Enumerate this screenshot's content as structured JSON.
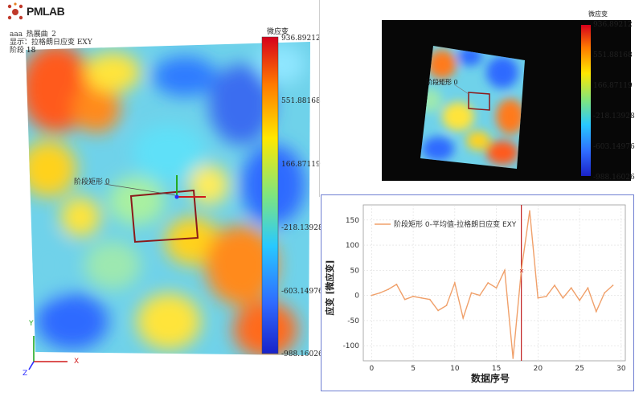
{
  "app": {
    "logo": "PMLAB",
    "view_name": "aaa_热展曲_2",
    "display_label": "显示：拉格朗日应变 EXY",
    "stage_label": "阶段",
    "stage_value": "18"
  },
  "left_view": {
    "rect_label": "阶段矩形 0",
    "colorbar": {
      "title": "微应变",
      "ticks": [
        "936.89212",
        "551.88168",
        "166.87119",
        "-218.13928",
        "-603.14976",
        "-988.16026"
      ]
    },
    "axes": {
      "x": "X",
      "y": "Y",
      "z": "Z"
    }
  },
  "right_view": {
    "rect_label": "阶段矩形 0",
    "colorbar": {
      "title": "微应变",
      "ticks": [
        "936.89212",
        "551.88168",
        "166.87119",
        "-218.13928",
        "-603.14976",
        "-988.16026"
      ]
    }
  },
  "colors": {
    "line": "#f0a06a",
    "cursor": "#c02020",
    "panel_border": "#6f7fd2"
  },
  "chart_data": {
    "type": "line",
    "xlabel": "数据序号",
    "ylabel": "应变 [微应变]",
    "xlim": [
      -1,
      30.5
    ],
    "ylim": [
      -130,
      180
    ],
    "xticks": [
      0,
      5,
      10,
      15,
      20,
      25,
      30
    ],
    "yticks": [
      -100,
      -50,
      0,
      50,
      100,
      150
    ],
    "grid": true,
    "legend_position": "top-left",
    "cursor_x": 18,
    "series": [
      {
        "name": "阶段矩形 0-平均值-拉格朗日应变 EXY",
        "x": [
          0,
          1,
          2,
          3,
          4,
          5,
          6,
          7,
          8,
          9,
          10,
          11,
          12,
          13,
          14,
          15,
          16,
          17,
          18,
          19,
          20,
          21,
          22,
          23,
          24,
          25,
          26,
          27,
          28,
          29
        ],
        "values": [
          0,
          5,
          12,
          22,
          -8,
          -2,
          -5,
          -8,
          -30,
          -20,
          25,
          -45,
          5,
          0,
          25,
          15,
          50,
          -125,
          50,
          168,
          -5,
          -2,
          20,
          -5,
          15,
          -10,
          15,
          -32,
          5,
          20
        ]
      }
    ]
  }
}
